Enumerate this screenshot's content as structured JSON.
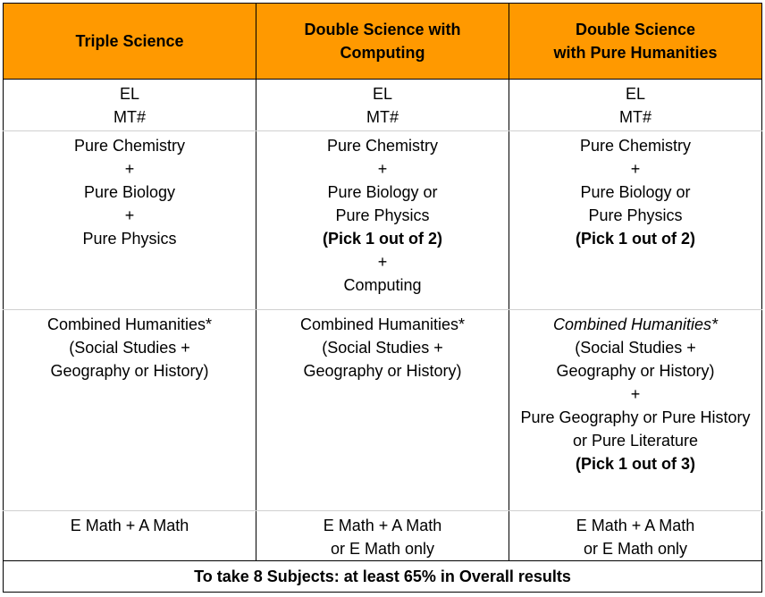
{
  "headers": {
    "col1": [
      "Triple Science"
    ],
    "col2": [
      "Double Science with",
      "Computing"
    ],
    "col3": [
      "Double Science",
      "with Pure Humanities"
    ]
  },
  "languages": {
    "col1": [
      "EL",
      "MT#"
    ],
    "col2": [
      "EL",
      "MT#"
    ],
    "col3": [
      "EL",
      "MT#"
    ]
  },
  "sciences": {
    "col1": [
      "Pure Chemistry",
      "+",
      "Pure Biology",
      "+",
      "Pure Physics"
    ],
    "col2": [
      "Pure Chemistry",
      "+",
      "Pure Biology or",
      "Pure Physics",
      "(Pick 1 out of 2)",
      "+",
      "Computing"
    ],
    "col3": [
      "Pure Chemistry",
      "+",
      "Pure Biology or",
      "Pure Physics",
      "(Pick 1 out of 2)"
    ]
  },
  "humanities": {
    "col1": [
      "Combined Humanities*",
      "(Social Studies +",
      "Geography or History)"
    ],
    "col2": [
      "Combined Humanities*",
      "(Social Studies +",
      "Geography or History)"
    ],
    "col3": [
      "Combined Humanities*",
      "(Social Studies +",
      "Geography or History)",
      "+",
      "Pure Geography or Pure History",
      "or Pure Literature",
      "(Pick 1 out of 3)"
    ]
  },
  "mathematics": {
    "col1": [
      "E Math + A Math"
    ],
    "col2": [
      "E Math + A Math",
      "or E Math only"
    ],
    "col3": [
      "E Math + A Math",
      "or E Math only"
    ]
  },
  "footer": "To take 8 Subjects: at least 65% in Overall results"
}
